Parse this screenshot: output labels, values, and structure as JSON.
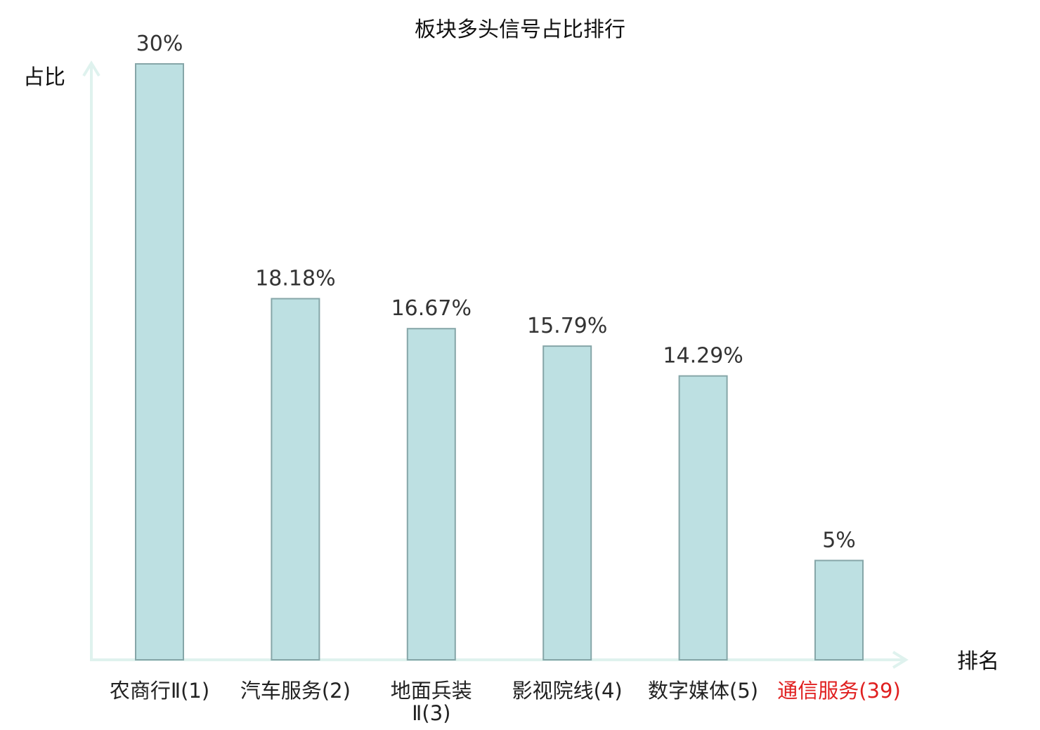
{
  "chart_data": {
    "type": "bar",
    "title": "板块多头信号占比排行",
    "xlabel": "排名",
    "ylabel": "占比",
    "categories": [
      "农商行Ⅱ(1)",
      "汽车服务(2)",
      "地面兵装Ⅱ(3)",
      "影视院线(4)",
      "数字媒体(5)",
      "通信服务(39)"
    ],
    "value_labels": [
      "30%",
      "18.18%",
      "16.67%",
      "15.79%",
      "14.29%",
      "5%"
    ],
    "values": [
      30,
      18.18,
      16.67,
      15.79,
      14.29,
      5
    ],
    "ylim": [
      0,
      30
    ],
    "grid": false,
    "highlight_index": 5,
    "colors": {
      "bar_fill": "#bde0e2",
      "bar_stroke": "#86a6a8",
      "axis": "#dff2ee",
      "label_text": "#222222",
      "highlight_text": "#e02020"
    }
  }
}
